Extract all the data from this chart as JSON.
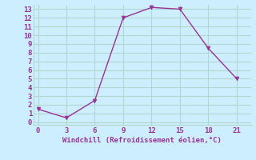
{
  "x": [
    0,
    3,
    6,
    9,
    12,
    15,
    18,
    21
  ],
  "y": [
    1.5,
    0.5,
    2.5,
    12,
    13.2,
    13,
    8.5,
    5
  ],
  "line_color": "#993399",
  "marker_color": "#993399",
  "bg_color": "#cceeff",
  "grid_color": "#b0d8cc",
  "xlabel": "Windchill (Refroidissement éolien,°C)",
  "xlabel_color": "#993399",
  "tick_color": "#993399",
  "xlim": [
    -0.5,
    22.5
  ],
  "ylim": [
    -0.3,
    13.5
  ],
  "xticks": [
    0,
    3,
    6,
    9,
    12,
    15,
    18,
    21
  ],
  "yticks": [
    0,
    1,
    2,
    3,
    4,
    5,
    6,
    7,
    8,
    9,
    10,
    11,
    12,
    13
  ],
  "figsize": [
    3.2,
    2.0
  ],
  "dpi": 100
}
